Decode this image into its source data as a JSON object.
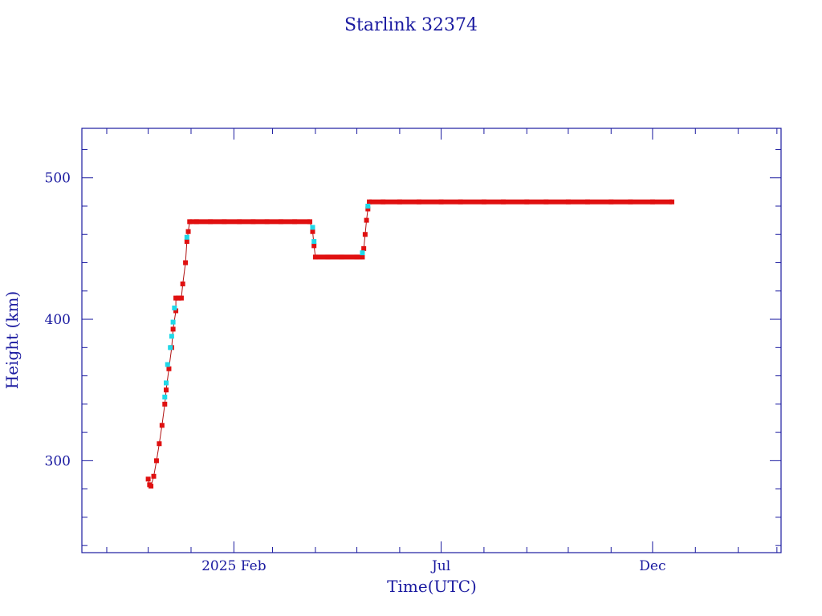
{
  "chart_data": {
    "type": "scatter",
    "title": "Starlink 32374",
    "xlabel": "Time(UTC)",
    "ylabel": "Height (km)",
    "ylim": [
      235,
      535
    ],
    "xlim": [
      "2024-10-14",
      "2026-03-04"
    ],
    "x_ticks": [
      {
        "date": "2025-02-01",
        "label": "2025 Feb"
      },
      {
        "date": "2025-07-01",
        "label": "Jul"
      },
      {
        "date": "2025-12-01",
        "label": "Dec"
      }
    ],
    "y_ticks": [
      300,
      400,
      500
    ],
    "grid": false,
    "colors": {
      "axis": "#1a1aa0",
      "primary_points": "#e01010",
      "secondary_points": "#20d8e8"
    },
    "series": [
      {
        "color": "#e01010",
        "points": [
          [
            "2024-12-01",
            287
          ],
          [
            "2024-12-02",
            283
          ],
          [
            "2024-12-03",
            282
          ],
          [
            "2024-12-05",
            289
          ],
          [
            "2024-12-07",
            300
          ],
          [
            "2024-12-09",
            312
          ],
          [
            "2024-12-11",
            325
          ],
          [
            "2024-12-13",
            340
          ],
          [
            "2024-12-14",
            350
          ],
          [
            "2024-12-16",
            365
          ],
          [
            "2024-12-18",
            380
          ],
          [
            "2024-12-19",
            393
          ],
          [
            "2024-12-21",
            406
          ],
          [
            "2024-12-21",
            415
          ],
          [
            "2024-12-23",
            415
          ],
          [
            "2024-12-25",
            415
          ],
          [
            "2024-12-26",
            425
          ],
          [
            "2024-12-28",
            440
          ],
          [
            "2024-12-29",
            455
          ],
          [
            "2024-12-30",
            462
          ],
          [
            "2024-12-31",
            469
          ],
          [
            "2025-01-05",
            469
          ],
          [
            "2025-01-15",
            469
          ],
          [
            "2025-01-25",
            469
          ],
          [
            "2025-02-05",
            469
          ],
          [
            "2025-02-15",
            469
          ],
          [
            "2025-02-25",
            469
          ],
          [
            "2025-03-07",
            469
          ],
          [
            "2025-03-17",
            469
          ],
          [
            "2025-03-28",
            469
          ],
          [
            "2025-03-30",
            462
          ],
          [
            "2025-03-31",
            452
          ],
          [
            "2025-04-01",
            444
          ],
          [
            "2025-04-10",
            444
          ],
          [
            "2025-04-20",
            444
          ],
          [
            "2025-05-01",
            444
          ],
          [
            "2025-05-05",
            444
          ],
          [
            "2025-05-06",
            450
          ],
          [
            "2025-05-07",
            460
          ],
          [
            "2025-05-08",
            470
          ],
          [
            "2025-05-09",
            478
          ],
          [
            "2025-05-10",
            483
          ],
          [
            "2025-05-20",
            483
          ],
          [
            "2025-06-01",
            483
          ],
          [
            "2025-06-15",
            483
          ],
          [
            "2025-07-01",
            483
          ],
          [
            "2025-07-15",
            483
          ],
          [
            "2025-08-01",
            483
          ],
          [
            "2025-08-15",
            483
          ],
          [
            "2025-09-01",
            483
          ],
          [
            "2025-09-15",
            483
          ],
          [
            "2025-10-01",
            483
          ],
          [
            "2025-10-15",
            483
          ],
          [
            "2025-11-01",
            483
          ],
          [
            "2025-11-15",
            483
          ],
          [
            "2025-12-01",
            483
          ],
          [
            "2025-12-15",
            483
          ]
        ]
      },
      {
        "color": "#20d8e8",
        "points": [
          [
            "2024-12-13",
            345
          ],
          [
            "2024-12-14",
            355
          ],
          [
            "2024-12-15",
            368
          ],
          [
            "2024-12-17",
            380
          ],
          [
            "2024-12-18",
            388
          ],
          [
            "2024-12-19",
            398
          ],
          [
            "2024-12-20",
            408
          ],
          [
            "2024-12-29",
            458
          ],
          [
            "2025-03-30",
            465
          ],
          [
            "2025-03-31",
            455
          ],
          [
            "2025-05-05",
            447
          ],
          [
            "2025-05-09",
            480
          ]
        ]
      }
    ]
  }
}
